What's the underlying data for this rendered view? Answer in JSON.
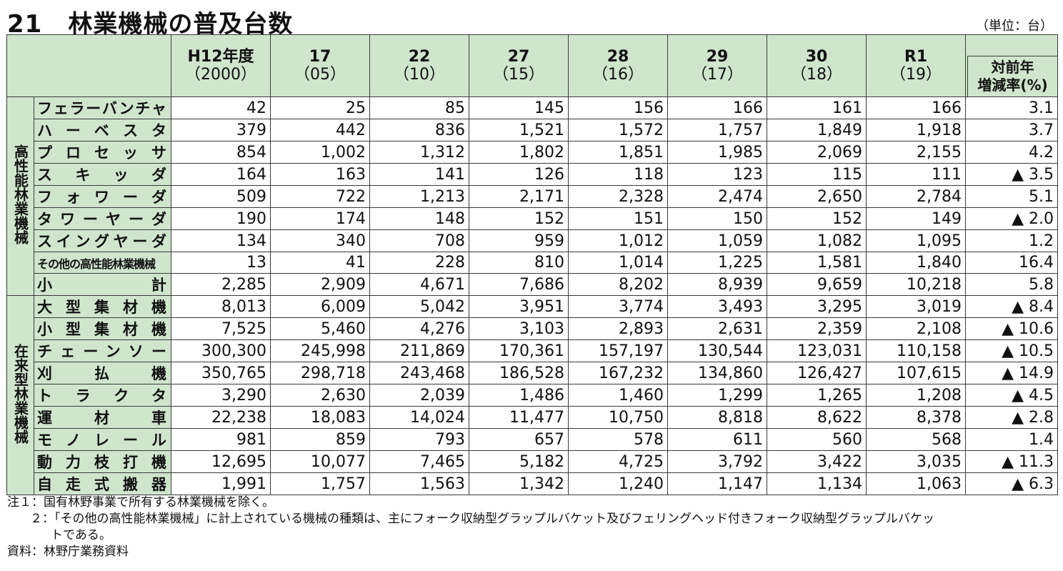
{
  "title": {
    "number": "21",
    "text": "林業機械の普及台数"
  },
  "unit": "（単位：台）",
  "columns": [
    {
      "a": "H12年度",
      "b": "（2000）"
    },
    {
      "a": "17",
      "b": "（05）"
    },
    {
      "a": "22",
      "b": "（10）"
    },
    {
      "a": "27",
      "b": "（15）"
    },
    {
      "a": "28",
      "b": "（16）"
    },
    {
      "a": "29",
      "b": "（17）"
    },
    {
      "a": "30",
      "b": "（18）"
    },
    {
      "a": "R1",
      "b": "（19）"
    }
  ],
  "rate_header": {
    "line1": "対前年",
    "line2": "増減率(%)"
  },
  "groups": [
    {
      "label": "高性能林業機械",
      "rows": [
        {
          "name": "フェラーバンチャ",
          "values": [
            "42",
            "25",
            "85",
            "145",
            "156",
            "166",
            "161",
            "166"
          ],
          "rate": "3.1"
        },
        {
          "name": "ハーベスタ",
          "values": [
            "379",
            "442",
            "836",
            "1,521",
            "1,572",
            "1,757",
            "1,849",
            "1,918"
          ],
          "rate": "3.7"
        },
        {
          "name": "プロセッサ",
          "values": [
            "854",
            "1,002",
            "1,312",
            "1,802",
            "1,851",
            "1,985",
            "2,069",
            "2,155"
          ],
          "rate": "4.2"
        },
        {
          "name": "スキッダ",
          "values": [
            "164",
            "163",
            "141",
            "126",
            "118",
            "123",
            "115",
            "111"
          ],
          "rate": "▲ 3.5"
        },
        {
          "name": "フォワーダ",
          "values": [
            "509",
            "722",
            "1,213",
            "2,171",
            "2,328",
            "2,474",
            "2,650",
            "2,784"
          ],
          "rate": "5.1"
        },
        {
          "name": "タワーヤーダ",
          "values": [
            "190",
            "174",
            "148",
            "152",
            "151",
            "150",
            "152",
            "149"
          ],
          "rate": "▲ 2.0"
        },
        {
          "name": "スイングヤーダ",
          "values": [
            "134",
            "340",
            "708",
            "959",
            "1,012",
            "1,059",
            "1,082",
            "1,095"
          ],
          "rate": "1.2"
        },
        {
          "name": "その他の高性能林業機械",
          "values": [
            "13",
            "41",
            "228",
            "810",
            "1,014",
            "1,225",
            "1,581",
            "1,840"
          ],
          "rate": "16.4",
          "small": true
        },
        {
          "name": "小計",
          "values": [
            "2,285",
            "2,909",
            "4,671",
            "7,686",
            "8,202",
            "8,939",
            "9,659",
            "10,218"
          ],
          "rate": "5.8"
        }
      ]
    },
    {
      "label": "在来型林業機械",
      "rows": [
        {
          "name": "大型集材機",
          "values": [
            "8,013",
            "6,009",
            "5,042",
            "3,951",
            "3,774",
            "3,493",
            "3,295",
            "3,019"
          ],
          "rate": "▲ 8.4"
        },
        {
          "name": "小型集材機",
          "values": [
            "7,525",
            "5,460",
            "4,276",
            "3,103",
            "2,893",
            "2,631",
            "2,359",
            "2,108"
          ],
          "rate": "▲ 10.6"
        },
        {
          "name": "チェーンソー",
          "values": [
            "300,300",
            "245,998",
            "211,869",
            "170,361",
            "157,197",
            "130,544",
            "123,031",
            "110,158"
          ],
          "rate": "▲ 10.5"
        },
        {
          "name": "刈払機",
          "values": [
            "350,765",
            "298,718",
            "243,468",
            "186,528",
            "167,232",
            "134,860",
            "126,427",
            "107,615"
          ],
          "rate": "▲ 14.9"
        },
        {
          "name": "トラクタ",
          "values": [
            "3,290",
            "2,630",
            "2,039",
            "1,486",
            "1,460",
            "1,299",
            "1,265",
            "1,208"
          ],
          "rate": "▲ 4.5"
        },
        {
          "name": "運材車",
          "values": [
            "22,238",
            "18,083",
            "14,024",
            "11,477",
            "10,750",
            "8,818",
            "8,622",
            "8,378"
          ],
          "rate": "▲ 2.8"
        },
        {
          "name": "モノレール",
          "values": [
            "981",
            "859",
            "793",
            "657",
            "578",
            "611",
            "560",
            "568"
          ],
          "rate": "1.4"
        },
        {
          "name": "動力枝打機",
          "values": [
            "12,695",
            "10,077",
            "7,465",
            "5,182",
            "4,725",
            "3,792",
            "3,422",
            "3,035"
          ],
          "rate": "▲ 11.3"
        },
        {
          "name": "自走式搬器",
          "values": [
            "1,991",
            "1,757",
            "1,563",
            "1,342",
            "1,240",
            "1,147",
            "1,134",
            "1,063"
          ],
          "rate": "▲ 6.3"
        }
      ]
    }
  ],
  "notes": {
    "n1": "注１：国有林野事業で所有する林業機械を除く。",
    "n2a": "２：「その他の高性能林業機械」に計上されている機械の種類は、主にフォーク収納型グラップルバケット及びフェリングヘッド付きフォーク収納型グラップルバケッ",
    "n2b": "トである。",
    "source": "資料：林野庁業務資料"
  }
}
